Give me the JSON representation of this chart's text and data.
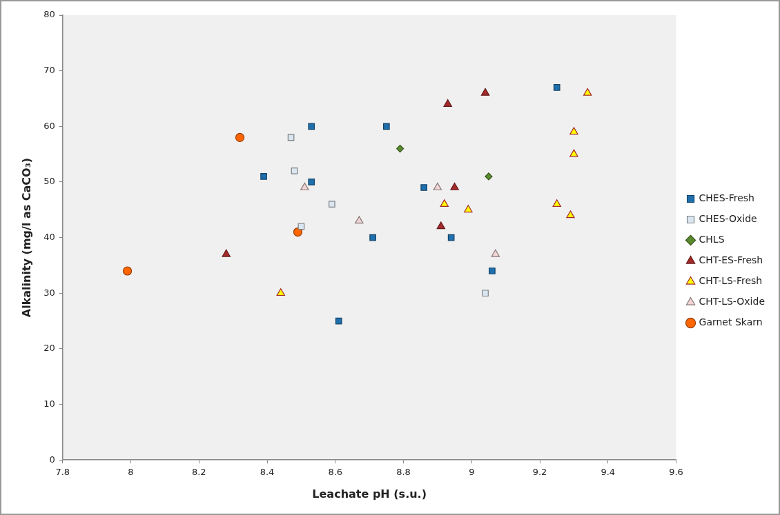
{
  "chart_data": {
    "type": "scatter",
    "xlabel": "Leachate pH (s.u.)",
    "ylabel": "Alkalinity (mg/l as CaCO₃)",
    "xlim": [
      7.8,
      9.6
    ],
    "xticks": [
      7.8,
      8,
      8.2,
      8.4,
      8.6,
      8.8,
      9,
      9.2,
      9.4,
      9.6
    ],
    "ylim": [
      0,
      80
    ],
    "yticks": [
      0,
      10,
      20,
      30,
      40,
      50,
      60,
      70,
      80
    ],
    "grid": false,
    "legend": "right",
    "series": [
      {
        "name": "CHES-Fresh",
        "color": "#1f6fad",
        "marker": "square",
        "x": [
          8.53,
          8.53,
          8.39,
          8.75,
          8.71,
          8.94,
          8.86,
          9.06,
          9.25,
          8.61
        ],
        "values": [
          60,
          50,
          51,
          60,
          40,
          40,
          49,
          34,
          67,
          25
        ]
      },
      {
        "name": "CHES-Oxide",
        "color": "#dce6f0",
        "marker": "square",
        "x": [
          8.47,
          8.48,
          8.59,
          8.5,
          9.04
        ],
        "values": [
          58,
          52,
          46,
          42,
          30
        ]
      },
      {
        "name": "CHLS",
        "color": "#5a8a2e",
        "marker": "diamond",
        "x": [
          8.79,
          9.05
        ],
        "values": [
          56,
          51
        ]
      },
      {
        "name": "CHT-ES-Fresh",
        "color": "#a52a2a",
        "marker": "triangle",
        "x": [
          8.28,
          9.04,
          8.93,
          8.95,
          8.91
        ],
        "values": [
          37,
          66,
          64,
          49,
          42
        ]
      },
      {
        "name": "CHT-LS-Fresh",
        "color": "#ffff00",
        "marker": "triangle",
        "x": [
          8.44,
          9.34,
          9.3,
          9.3,
          9.25,
          9.29,
          8.92,
          8.99
        ],
        "values": [
          30,
          66,
          59,
          55,
          46,
          44,
          46,
          45
        ]
      },
      {
        "name": "CHT-LS-Oxide",
        "color": "#f2d4d4",
        "marker": "triangle",
        "x": [
          8.51,
          8.9,
          8.67,
          9.07
        ],
        "values": [
          49,
          49,
          43,
          37
        ]
      },
      {
        "name": "Garnet Skarn",
        "color": "#ff6600",
        "marker": "circle",
        "x": [
          7.99,
          8.32,
          8.49
        ],
        "values": [
          34,
          58,
          41
        ]
      }
    ]
  }
}
